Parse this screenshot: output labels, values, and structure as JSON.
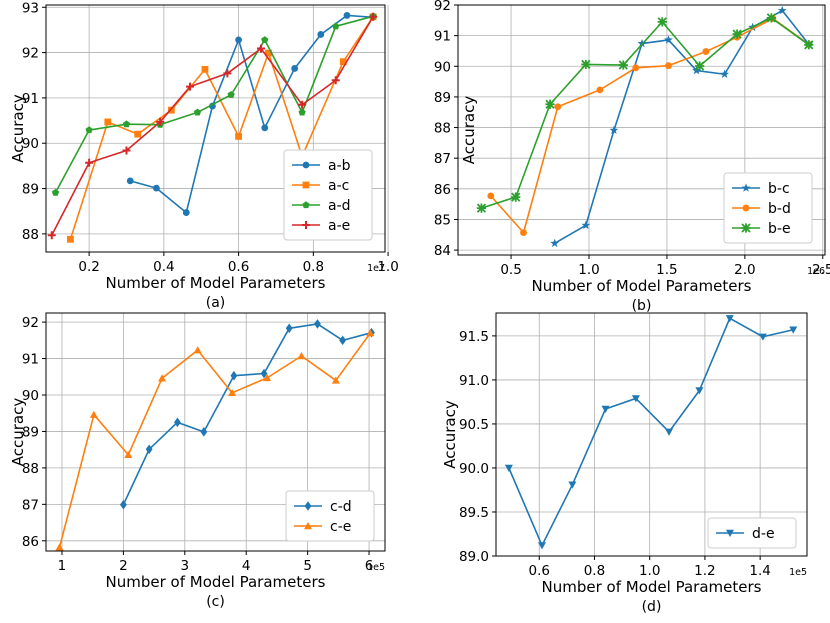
{
  "chart_data": [
    {
      "id": "a",
      "type": "line",
      "panel_label": "(a)",
      "xlabel": "Number of Model Parameters",
      "ylabel": "Accuracy",
      "x_exponent_label": "1e7",
      "xlim": [
        0.0846,
        0.9918
      ],
      "ylim": [
        87.6,
        93.05
      ],
      "xticks": [
        0.2,
        0.4,
        0.6,
        0.8,
        1.0
      ],
      "xtick_labels": [
        "0.2",
        "0.4",
        "0.6",
        "0.8",
        "1.0"
      ],
      "yticks": [
        88,
        89,
        90,
        91,
        92,
        93
      ],
      "ytick_labels": [
        "88",
        "89",
        "90",
        "91",
        "92",
        "93"
      ],
      "grid": true,
      "legend_position": "lower-right",
      "series": [
        {
          "name": "a-b",
          "color": "#1f77b4",
          "marker": "circle",
          "x": [
            0.31,
            0.38,
            0.46,
            0.53,
            0.6,
            0.67,
            0.75,
            0.82,
            0.89,
            0.96
          ],
          "y": [
            89.17,
            89.01,
            88.47,
            90.82,
            92.28,
            90.34,
            91.65,
            92.4,
            92.82,
            92.78
          ]
        },
        {
          "name": "a-c",
          "color": "#ff7f0e",
          "marker": "square",
          "x": [
            0.15,
            0.25,
            0.33,
            0.42,
            0.51,
            0.6,
            0.68,
            0.77,
            0.88,
            0.96
          ],
          "y": [
            87.88,
            90.47,
            90.2,
            90.73,
            91.63,
            90.15,
            91.99,
            89.71,
            91.8,
            92.79
          ]
        },
        {
          "name": "a-d",
          "color": "#2ca02c",
          "marker": "pentagon",
          "x": [
            0.11,
            0.2,
            0.3,
            0.39,
            0.49,
            0.58,
            0.67,
            0.77,
            0.86,
            0.96
          ],
          "y": [
            88.91,
            90.29,
            90.42,
            90.41,
            90.68,
            91.07,
            92.28,
            90.68,
            92.58,
            92.8
          ]
        },
        {
          "name": "a-e",
          "color": "#d62728",
          "marker": "plus",
          "x": [
            0.1,
            0.2,
            0.3,
            0.39,
            0.47,
            0.57,
            0.66,
            0.77,
            0.86,
            0.96
          ],
          "y": [
            87.97,
            89.57,
            89.84,
            90.47,
            91.25,
            91.54,
            92.09,
            90.85,
            91.39,
            92.79
          ]
        }
      ]
    },
    {
      "id": "b",
      "type": "line",
      "panel_label": "(b)",
      "xlabel": "Number of Model Parameters",
      "ylabel": "Accuracy",
      "x_exponent_label": "1e6",
      "xlim": [
        0.1596,
        2.5142
      ],
      "ylim": [
        83.84,
        92.0
      ],
      "xticks": [
        0.5,
        1.0,
        1.5,
        2.0,
        2.5
      ],
      "xtick_labels": [
        "0.5",
        "1.0",
        "1.5",
        "2.0",
        "2.5"
      ],
      "yticks": [
        84,
        85,
        86,
        87,
        88,
        89,
        90,
        91,
        92
      ],
      "ytick_labels": [
        "84",
        "85",
        "86",
        "87",
        "88",
        "89",
        "90",
        "91",
        "92"
      ],
      "grid": true,
      "legend_position": "lower-right",
      "series": [
        {
          "name": "b-c",
          "color": "#1f77b4",
          "marker": "star",
          "x": [
            0.78,
            0.98,
            1.16,
            1.34,
            1.51,
            1.69,
            1.87,
            2.05,
            2.24,
            2.41
          ],
          "y": [
            84.22,
            84.81,
            87.91,
            90.74,
            90.86,
            89.86,
            89.74,
            91.27,
            91.82,
            90.72
          ]
        },
        {
          "name": "b-d",
          "color": "#ff7f0e",
          "marker": "circle",
          "x": [
            0.37,
            0.58,
            0.8,
            1.07,
            1.3,
            1.51,
            1.75,
            1.95,
            2.18,
            2.41
          ],
          "y": [
            85.77,
            84.57,
            88.68,
            89.23,
            89.95,
            90.02,
            90.48,
            90.95,
            91.56,
            90.72
          ]
        },
        {
          "name": "b-e",
          "color": "#2ca02c",
          "marker": "xstar",
          "x": [
            0.31,
            0.53,
            0.75,
            0.98,
            1.22,
            1.47,
            1.71,
            1.95,
            2.17,
            2.41
          ],
          "y": [
            85.37,
            85.73,
            88.76,
            90.06,
            90.04,
            91.45,
            90.01,
            91.05,
            91.58,
            90.7
          ]
        }
      ]
    },
    {
      "id": "c",
      "type": "line",
      "panel_label": "(c)",
      "xlabel": "Number of Model Parameters",
      "ylabel": "Accuracy",
      "x_exponent_label": "1e5",
      "xlim": [
        0.74,
        6.26
      ],
      "ylim": [
        85.72,
        92.25
      ],
      "xticks": [
        1,
        2,
        3,
        4,
        5,
        6
      ],
      "xtick_labels": [
        "1",
        "2",
        "3",
        "4",
        "5",
        "6"
      ],
      "yticks": [
        86,
        87,
        88,
        89,
        90,
        91,
        92
      ],
      "ytick_labels": [
        "86",
        "87",
        "88",
        "89",
        "90",
        "91",
        "92"
      ],
      "grid": true,
      "legend_position": "lower-right",
      "series": [
        {
          "name": "c-d",
          "color": "#1f77b4",
          "marker": "diamond",
          "x": [
            2.0,
            2.42,
            2.88,
            3.31,
            3.8,
            4.29,
            4.7,
            5.16,
            5.57,
            6.04
          ],
          "y": [
            86.99,
            88.51,
            89.25,
            88.99,
            90.53,
            90.59,
            91.83,
            91.95,
            91.5,
            91.71
          ]
        },
        {
          "name": "c-e",
          "color": "#ff7f0e",
          "marker": "triangle-up",
          "x": [
            0.96,
            1.52,
            2.08,
            2.63,
            3.21,
            3.77,
            4.34,
            4.9,
            5.46,
            6.02
          ],
          "y": [
            85.82,
            89.46,
            88.36,
            90.46,
            91.23,
            90.06,
            90.47,
            91.07,
            90.4,
            91.7
          ]
        }
      ]
    },
    {
      "id": "d",
      "type": "line",
      "panel_label": "(d)",
      "xlabel": "Number of Model Parameters",
      "ylabel": "Accuracy",
      "x_exponent_label": "1e5",
      "xlim": [
        0.4434,
        1.5697
      ],
      "ylim": [
        89.0,
        91.76
      ],
      "xticks": [
        0.6,
        0.8,
        1.0,
        1.2,
        1.4
      ],
      "xtick_labels": [
        "0.6",
        "0.8",
        "1.0",
        "1.2",
        "1.4"
      ],
      "yticks": [
        89.0,
        89.5,
        90.0,
        90.5,
        91.0,
        91.5
      ],
      "ytick_labels": [
        "89.0",
        "89.5",
        "90.0",
        "90.5",
        "91.0",
        "91.5"
      ],
      "grid": true,
      "legend_position": "lower-right",
      "series": [
        {
          "name": "d-e",
          "color": "#1f77b4",
          "marker": "triangle-down",
          "x": [
            0.49,
            0.61,
            0.72,
            0.84,
            0.95,
            1.07,
            1.18,
            1.29,
            1.41,
            1.52
          ],
          "y": [
            90.0,
            89.12,
            89.81,
            90.67,
            90.79,
            90.41,
            90.88,
            91.7,
            91.49,
            91.57
          ]
        }
      ]
    }
  ]
}
